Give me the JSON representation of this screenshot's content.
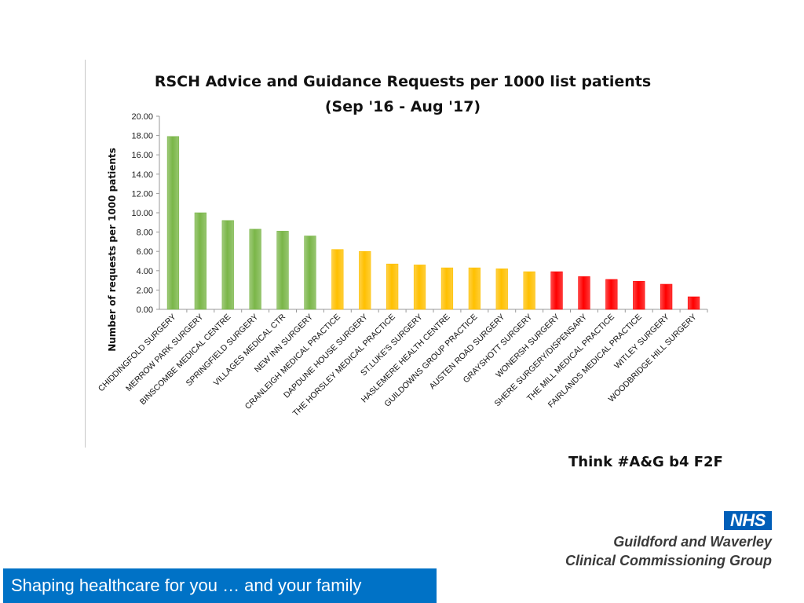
{
  "chart_data": {
    "type": "bar",
    "title": [
      "RSCH Advice and Guidance Requests per 1000 list patients",
      "(Sep '16 - Aug '17)"
    ],
    "ylabel": "Number of requests per 1000 patients",
    "xlabel": "",
    "ylim": [
      0,
      20
    ],
    "yticks": [
      "0.00",
      "2.00",
      "4.00",
      "6.00",
      "8.00",
      "10.00",
      "12.00",
      "14.00",
      "16.00",
      "18.00",
      "20.00"
    ],
    "grid": false,
    "categories": [
      "CHIDDINGFOLD SURGERY",
      "MERROW PARK SURGERY",
      "BINSCOMBE MEDICAL CENTRE",
      "SPRINGFIELD SURGERY",
      "VILLAGES MEDICAL CTR",
      "NEW INN SURGERY",
      "CRANLEIGH MEDICAL PRACTICE",
      "DAPDUNE HOUSE SURGERY",
      "THE HORSLEY MEDICAL PRACTICE",
      "ST.LUKE'S SURGERY",
      "HASLEMERE HEALTH CENTRE",
      "GUILDOWNS GROUP PRACTICE",
      "AUSTEN ROAD SURGERY",
      "GRAYSHOTT SURGERY",
      "WONERSH SURGERY",
      "SHERE SURGERY/DISPENSARY",
      "THE MILL MEDICAL PRACTICE",
      "FAIRLANDS MEDICAL PRACTICE",
      "WITLEY SURGERY",
      "WOODBRIDGE HILL SURGERY"
    ],
    "values": [
      17.9,
      10.0,
      9.2,
      8.3,
      8.1,
      7.6,
      6.2,
      6.0,
      4.7,
      4.6,
      4.3,
      4.3,
      4.2,
      3.9,
      3.9,
      3.4,
      3.1,
      2.9,
      2.6,
      1.3
    ],
    "bar_colors": [
      "#7ab648",
      "#7ab648",
      "#7ab648",
      "#7ab648",
      "#7ab648",
      "#7ab648",
      "#ffc000",
      "#ffc000",
      "#ffc000",
      "#ffc000",
      "#ffc000",
      "#ffc000",
      "#ffc000",
      "#ffc000",
      "#ff0000",
      "#ff0000",
      "#ff0000",
      "#ff0000",
      "#ff0000",
      "#ff0000"
    ]
  },
  "slogan": "Think #A&G b4 F2F",
  "logo": {
    "text": "NHS",
    "color": "#005eb8"
  },
  "org": {
    "line1": "Guildford and Waverley",
    "line2": "Clinical Commissioning Group"
  },
  "footer": {
    "text": "Shaping healthcare for you … and your family",
    "color": "#0072c6"
  }
}
